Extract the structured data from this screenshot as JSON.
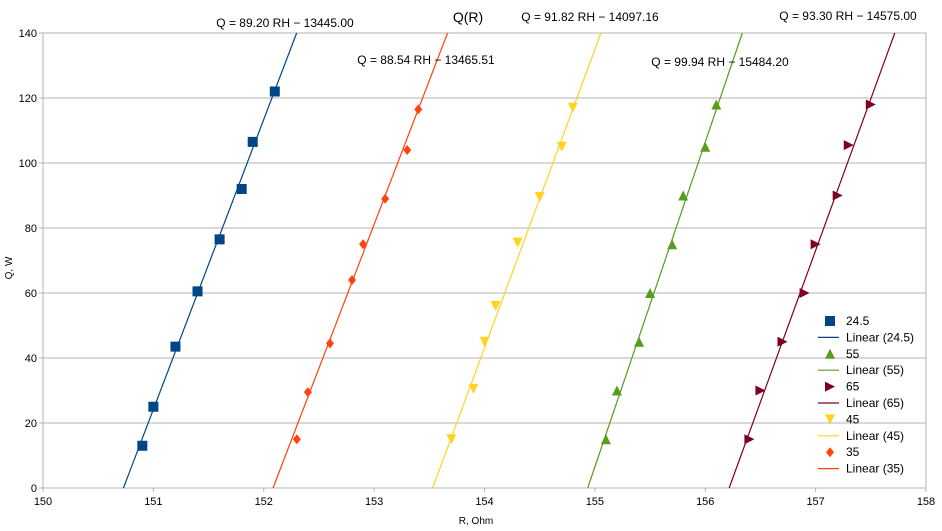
{
  "chart_data": {
    "type": "scatter",
    "title": "Q(R)",
    "xlabel": "R, Ohm",
    "ylabel": "Q, W",
    "xlim": [
      150,
      158
    ],
    "ylim": [
      0,
      140
    ],
    "xticks": [
      150,
      151,
      152,
      153,
      154,
      155,
      156,
      157,
      158
    ],
    "yticks": [
      0,
      20,
      40,
      60,
      80,
      100,
      120,
      140
    ],
    "grid": "horizontal",
    "legend_position": "right",
    "series": [
      {
        "name": "24.5",
        "marker": "square",
        "color": "#004586",
        "points": [
          [
            150.9,
            13
          ],
          [
            151.0,
            25
          ],
          [
            151.2,
            43.5
          ],
          [
            151.4,
            60.5
          ],
          [
            151.6,
            76.5
          ],
          [
            151.8,
            92
          ],
          [
            151.9,
            106.5
          ],
          [
            152.1,
            122
          ]
        ]
      },
      {
        "name": "55",
        "marker": "triangle-up",
        "color": "#579d1c",
        "points": [
          [
            155.1,
            15
          ],
          [
            155.2,
            30
          ],
          [
            155.4,
            45
          ],
          [
            155.5,
            60
          ],
          [
            155.7,
            75
          ],
          [
            155.8,
            90
          ],
          [
            156.0,
            105
          ],
          [
            156.1,
            118
          ]
        ]
      },
      {
        "name": "65",
        "marker": "triangle-right",
        "color": "#7e0021",
        "points": [
          [
            156.4,
            15
          ],
          [
            156.5,
            30
          ],
          [
            156.7,
            45
          ],
          [
            156.9,
            60
          ],
          [
            157.0,
            75
          ],
          [
            157.2,
            90
          ],
          [
            157.3,
            105.5
          ],
          [
            157.5,
            118
          ]
        ]
      },
      {
        "name": "45",
        "marker": "triangle-down",
        "color": "#ffd320",
        "points": [
          [
            153.7,
            15
          ],
          [
            153.9,
            30.5
          ],
          [
            154.0,
            45
          ],
          [
            154.1,
            56
          ],
          [
            154.3,
            75.5
          ],
          [
            154.5,
            89.5
          ],
          [
            154.7,
            105
          ],
          [
            154.8,
            117
          ]
        ]
      },
      {
        "name": "35",
        "marker": "diamond",
        "color": "#ff420e",
        "points": [
          [
            152.3,
            15
          ],
          [
            152.4,
            29.5
          ],
          [
            152.6,
            44.5
          ],
          [
            152.8,
            64
          ],
          [
            152.9,
            75
          ],
          [
            153.1,
            89
          ],
          [
            153.3,
            104
          ],
          [
            153.4,
            116.5
          ]
        ]
      }
    ],
    "trendlines": [
      {
        "name": "Linear (24.5)",
        "slope": 89.2,
        "intercept": -13445.0,
        "color": "#004586"
      },
      {
        "name": "Linear (55)",
        "slope": 99.94,
        "intercept": -15484.2,
        "color": "#579d1c"
      },
      {
        "name": "Linear (65)",
        "slope": 93.3,
        "intercept": -14575.0,
        "color": "#7e0021"
      },
      {
        "name": "Linear (45)",
        "slope": 91.82,
        "intercept": -14097.16,
        "color": "#ffd320"
      },
      {
        "name": "Linear (35)",
        "slope": 88.54,
        "intercept": -13465.51,
        "color": "#ff420e"
      }
    ],
    "equations": [
      {
        "text": "Q = 89.20 RH − 13445.00",
        "near": "24.5"
      },
      {
        "text": "Q = 88.54 RH − 13465.51",
        "near": "35"
      },
      {
        "text": "Q = 91.82 RH − 14097.16",
        "near": "45"
      },
      {
        "text": "Q = 99.94 RH − 15484.20",
        "near": "55"
      },
      {
        "text": "Q = 93.30 RH − 14575.00",
        "near": "65"
      }
    ],
    "legend": [
      {
        "label": "24.5",
        "kind": "marker",
        "series": 0
      },
      {
        "label": "Linear (24.5)",
        "kind": "line",
        "series": 0
      },
      {
        "label": "55",
        "kind": "marker",
        "series": 1
      },
      {
        "label": "Linear (55)",
        "kind": "line",
        "series": 1
      },
      {
        "label": "65",
        "kind": "marker",
        "series": 2
      },
      {
        "label": "Linear (65)",
        "kind": "line",
        "series": 2
      },
      {
        "label": "45",
        "kind": "marker",
        "series": 3
      },
      {
        "label": "Linear (45)",
        "kind": "line",
        "series": 3
      },
      {
        "label": "35",
        "kind": "marker",
        "series": 4
      },
      {
        "label": "Linear (35)",
        "kind": "line",
        "series": 4
      }
    ]
  }
}
